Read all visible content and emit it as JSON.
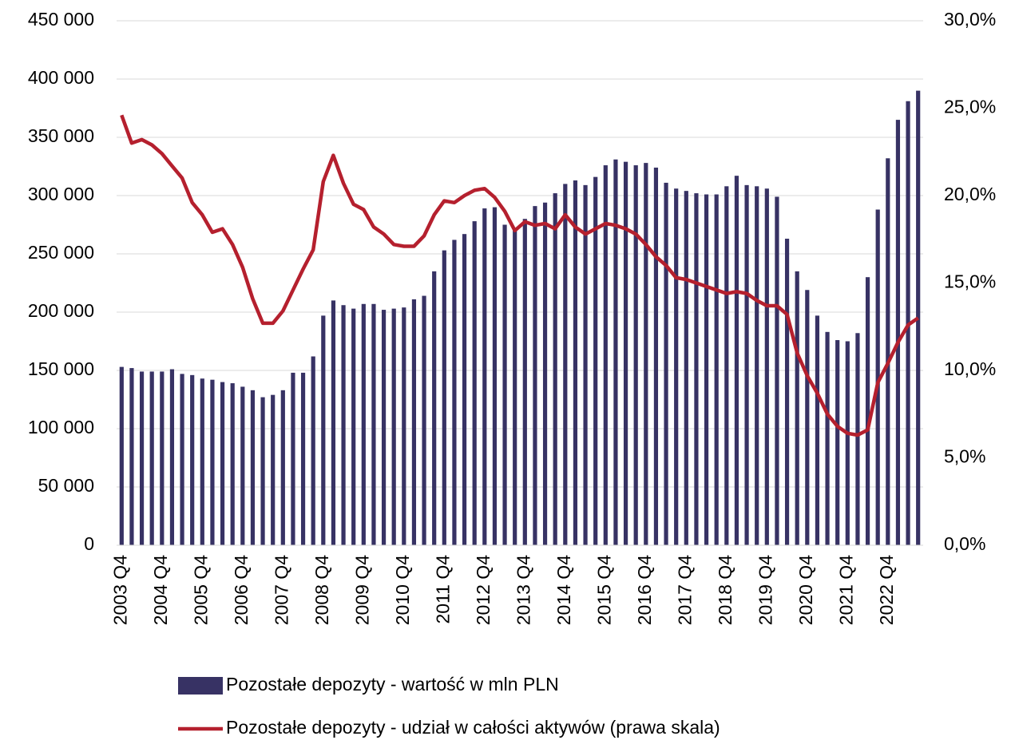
{
  "chart_data": {
    "type": "bar_line",
    "categories": [
      "2003 Q4",
      null,
      null,
      null,
      "2004 Q4",
      null,
      null,
      null,
      "2005 Q4",
      null,
      null,
      null,
      "2006 Q4",
      null,
      null,
      null,
      "2007 Q4",
      null,
      null,
      null,
      "2008 Q4",
      null,
      null,
      null,
      "2009 Q4",
      null,
      null,
      null,
      "2010 Q4",
      null,
      null,
      null,
      "2011 Q4",
      null,
      null,
      null,
      "2012 Q4",
      null,
      null,
      null,
      "2013 Q4",
      null,
      null,
      null,
      "2014 Q4",
      null,
      null,
      null,
      "2015 Q4",
      null,
      null,
      null,
      "2016 Q4",
      null,
      null,
      null,
      "2017 Q4",
      null,
      null,
      null,
      "2018 Q4",
      null,
      null,
      null,
      "2019 Q4",
      null,
      null,
      null,
      "2020 Q4",
      null,
      null,
      null,
      "2021 Q4",
      null,
      null,
      null,
      "2022 Q4",
      null,
      null,
      null
    ],
    "series": [
      {
        "name": "Pozostałe depozyty - wartość w mln PLN",
        "type": "bar",
        "color": "#373264",
        "axis": "y",
        "values": [
          153000,
          152000,
          149000,
          149000,
          149000,
          151000,
          147000,
          146000,
          143000,
          142000,
          140000,
          139000,
          136000,
          133000,
          127000,
          129000,
          133000,
          148000,
          148000,
          162000,
          197000,
          210000,
          206000,
          203000,
          207000,
          207000,
          202000,
          203000,
          204000,
          211000,
          214000,
          235000,
          253000,
          262000,
          267000,
          278000,
          289000,
          290000,
          275000,
          271000,
          280000,
          291000,
          294000,
          302000,
          310000,
          313000,
          309000,
          316000,
          326000,
          331000,
          329000,
          326000,
          328000,
          324000,
          311000,
          306000,
          304000,
          302000,
          301000,
          301000,
          308000,
          317000,
          309000,
          308000,
          306000,
          299000,
          263000,
          235000,
          219000,
          197000,
          183000,
          176000,
          175000,
          182000,
          230000,
          288000,
          332000,
          365000,
          381000,
          390000
        ]
      },
      {
        "name": "Pozostałe depozyty - udział w całości aktywów (prawa skala)",
        "type": "line",
        "color": "#b5202e",
        "axis": "y2",
        "values": [
          24.6,
          23.0,
          23.2,
          22.9,
          22.4,
          21.7,
          21.0,
          19.6,
          18.9,
          17.9,
          18.1,
          17.2,
          15.9,
          14.1,
          12.7,
          12.7,
          13.4,
          14.6,
          15.8,
          16.9,
          20.8,
          22.3,
          20.7,
          19.5,
          19.2,
          18.2,
          17.8,
          17.2,
          17.1,
          17.1,
          17.7,
          18.9,
          19.7,
          19.6,
          20.0,
          20.3,
          20.4,
          19.9,
          19.1,
          18.0,
          18.5,
          18.3,
          18.4,
          18.1,
          18.9,
          18.2,
          17.8,
          18.1,
          18.4,
          18.3,
          18.1,
          17.8,
          17.2,
          16.5,
          16.0,
          15.3,
          15.2,
          15.0,
          14.8,
          14.6,
          14.4,
          14.5,
          14.4,
          14.0,
          13.7,
          13.7,
          13.2,
          11.0,
          9.7,
          8.7,
          7.5,
          6.8,
          6.4,
          6.3,
          6.6,
          9.3,
          10.4,
          11.6,
          12.6,
          13.0
        ]
      }
    ],
    "ylim": [
      0,
      450000
    ],
    "yticks": [
      0,
      {
        "value": 50000,
        "label": "50 000"
      },
      {
        "value": 100000,
        "label": "100 000"
      },
      {
        "value": 150000,
        "label": "150 000"
      },
      {
        "value": 200000,
        "label": "200 000"
      },
      {
        "value": 250000,
        "label": "250 000"
      },
      {
        "value": 300000,
        "label": "300 000"
      },
      {
        "value": 350000,
        "label": "350 000"
      },
      {
        "value": 400000,
        "label": "400 000"
      },
      {
        "value": 450000,
        "label": "450 000"
      }
    ],
    "y2lim": [
      0,
      30
    ],
    "y2ticks": [
      {
        "value": 0,
        "label": "0,0%"
      },
      {
        "value": 5,
        "label": "5,0%"
      },
      {
        "value": 10,
        "label": "10,0%"
      },
      {
        "value": 15,
        "label": "15,0%"
      },
      {
        "value": 20,
        "label": "20,0%"
      },
      {
        "value": 25,
        "label": "25,0%"
      },
      {
        "value": 30,
        "label": "30,0%"
      }
    ],
    "grid": true,
    "legend": "bottom"
  }
}
